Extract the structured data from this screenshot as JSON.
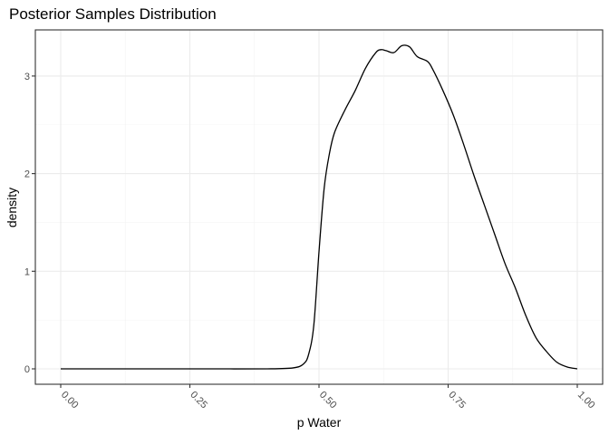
{
  "chart_data": {
    "type": "line",
    "title": "Posterior Samples Distribution",
    "xlabel": "p Water",
    "ylabel": "density",
    "xlim": [
      0.0,
      1.0
    ],
    "ylim": [
      0.0,
      3.45
    ],
    "x_ticks": [
      "0.00",
      "0.25",
      "0.50",
      "0.75",
      "1.00"
    ],
    "y_ticks": [
      "0",
      "1",
      "2",
      "3"
    ],
    "grid": true,
    "legend": "none",
    "line_color": "#000000",
    "series": [
      {
        "x": [
          0.0,
          0.1,
          0.2,
          0.3,
          0.4,
          0.45,
          0.47,
          0.48,
          0.49,
          0.5,
          0.51,
          0.52,
          0.53,
          0.55,
          0.57,
          0.59,
          0.61,
          0.62,
          0.63,
          0.645,
          0.66,
          0.675,
          0.69,
          0.71,
          0.72,
          0.74,
          0.76,
          0.78,
          0.8,
          0.82,
          0.84,
          0.86,
          0.88,
          0.9,
          0.92,
          0.94,
          0.96,
          0.98,
          1.0
        ],
        "y": [
          0.0,
          0.0,
          0.0,
          0.0,
          0.0,
          0.01,
          0.05,
          0.15,
          0.45,
          1.2,
          1.85,
          2.2,
          2.42,
          2.65,
          2.85,
          3.08,
          3.24,
          3.27,
          3.26,
          3.24,
          3.31,
          3.3,
          3.2,
          3.15,
          3.07,
          2.85,
          2.6,
          2.3,
          1.98,
          1.68,
          1.38,
          1.08,
          0.83,
          0.55,
          0.32,
          0.18,
          0.07,
          0.02,
          0.0
        ]
      }
    ]
  }
}
